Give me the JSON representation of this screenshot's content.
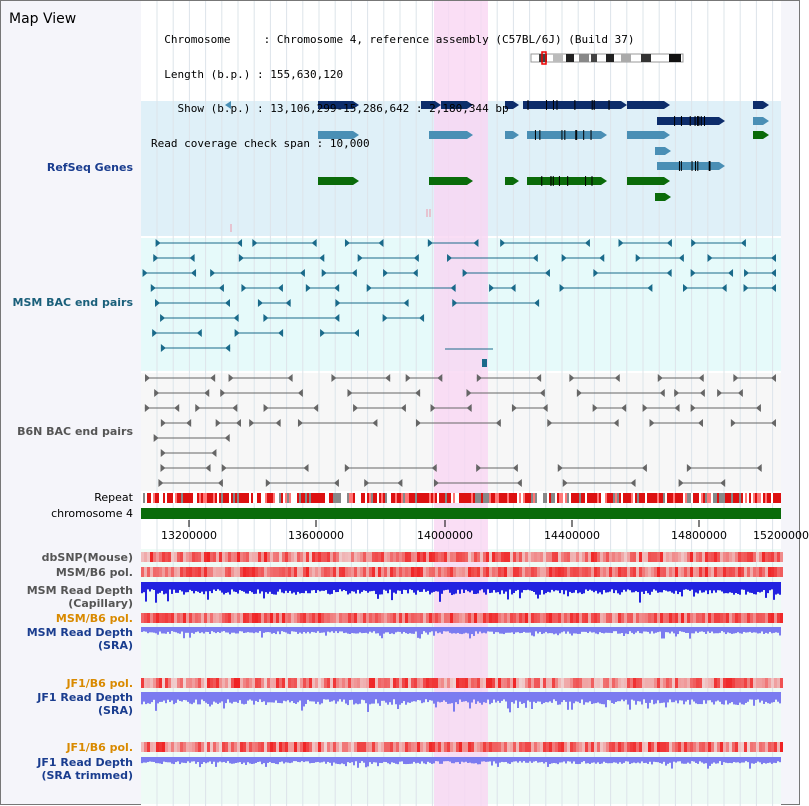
{
  "title": "Map View",
  "info": {
    "chromosome_key": "Chromosome",
    "chromosome_value": "Chromosome 4, reference assembly (C57BL/6J) (Build 37)",
    "length_key": "Length (b.p.)",
    "length_value": "155,630,120",
    "show_key": "Show (b.p.)",
    "show_value": "13,106,299-15,286,642 : 2,180,344 bp",
    "coverage_key": "Read coverage check span",
    "coverage_value": "10,000"
  },
  "tracks": {
    "refseq": "RefSeq Genes",
    "msm_bac": "MSM BAC end pairs",
    "b6n_bac": "B6N BAC end pairs",
    "repeat": "Repeat",
    "chromosome": "chromosome 4",
    "dbsnp": "dbSNP(Mouse)",
    "msm_b6_pol_1": "MSM/B6 pol.",
    "msm_read_depth_cap_1": "MSM Read Depth",
    "msm_read_depth_cap_2": "(Capillary)",
    "msm_b6_pol_2": "MSM/B6 pol.",
    "msm_read_depth_sra_1": "MSM Read Depth",
    "msm_read_depth_sra_2": "(SRA)",
    "jf1_b6_pol_1": "JF1/B6 pol.",
    "jf1_read_depth_sra_1": "JF1 Read Depth",
    "jf1_read_depth_sra_2": "(SRA)",
    "jf1_b6_pol_2": "JF1/B6 pol.",
    "jf1_read_depth_trim_1": "JF1 Read Depth",
    "jf1_read_depth_trim_2": "(SRA trimmed)"
  },
  "axis": {
    "ticks": [
      "13200000",
      "13600000",
      "14000000",
      "14400000",
      "14800000",
      "15200000"
    ]
  },
  "colors": {
    "refseq_bg": "#dff0f8",
    "bac_bg": "#e6fafa",
    "highlight": "#f9d6f2",
    "gene_dark": "#0d2d6b",
    "gene_mid": "#4a8fb5",
    "gene_green": "#0a6b0a",
    "bac_msm": "#1a6a8a",
    "bac_b6n": "#666666",
    "chromosome": "#0a6b0a",
    "depth_blue": "#2222e0",
    "depth_light": "#7b7bf0"
  }
}
